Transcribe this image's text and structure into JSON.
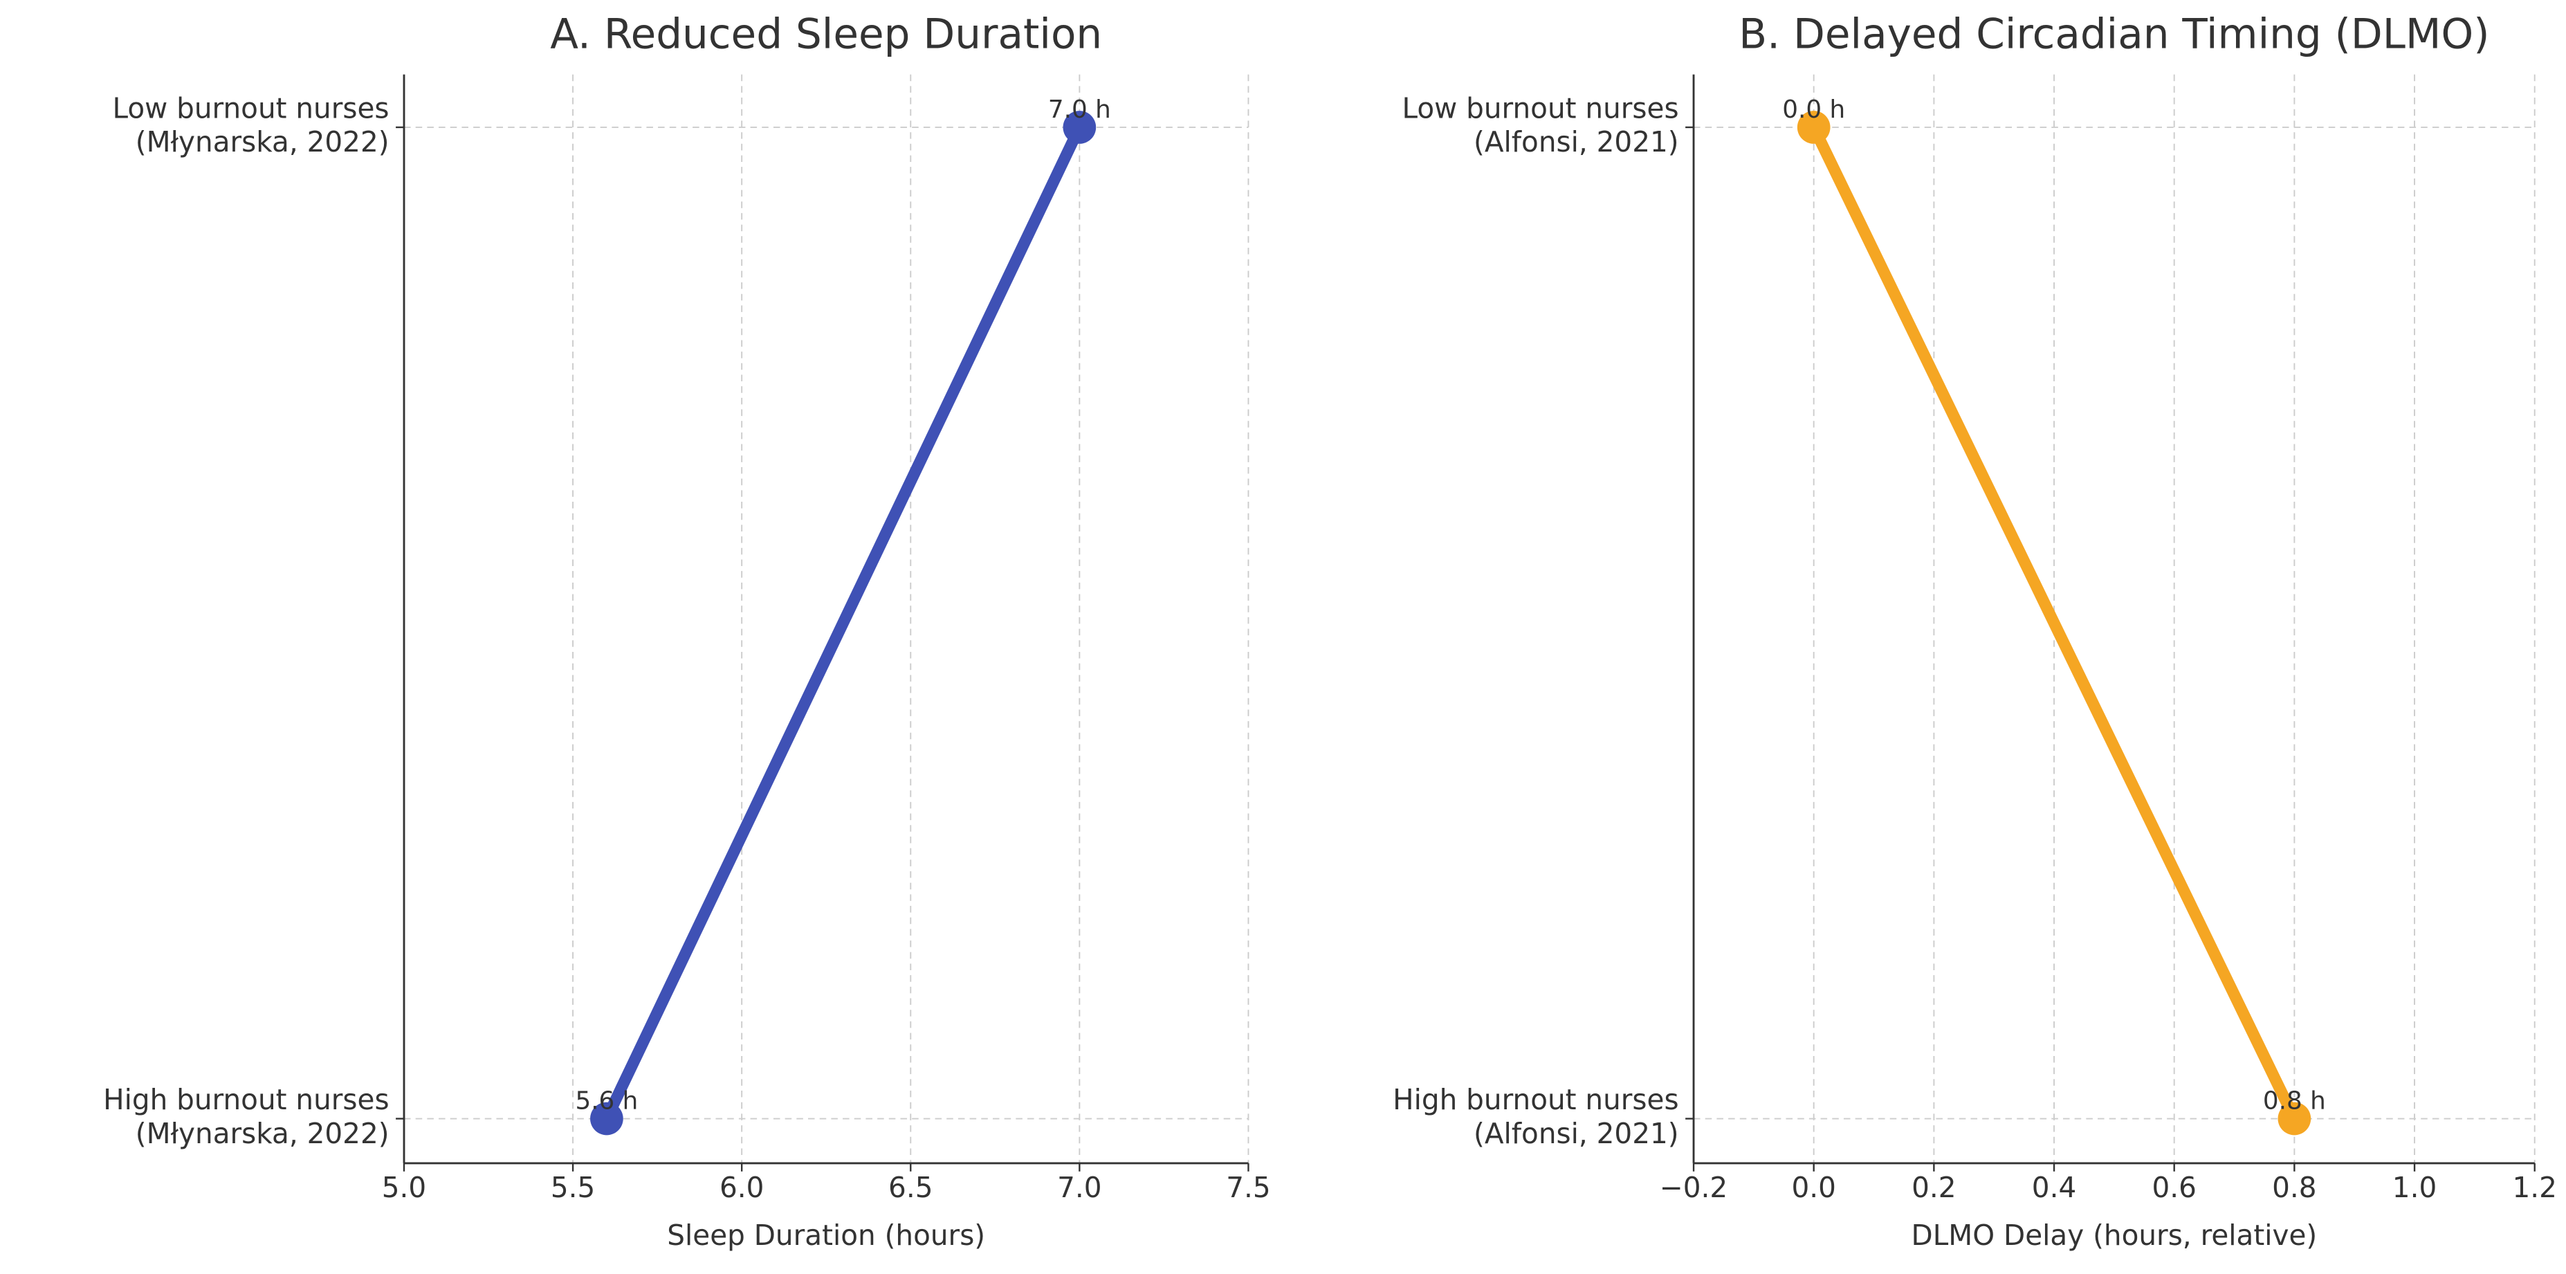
{
  "chart_data": [
    {
      "type": "line",
      "title": "A. Reduced Sleep Duration",
      "xlabel": "Sleep Duration (hours)",
      "categories": [
        "High burnout nurses\n(Młynarska, 2022)",
        "Low burnout nurses\n(Młynarska, 2022)"
      ],
      "series": [
        {
          "name": "Sleep Duration",
          "color": "#3f51b5",
          "values": [
            5.6,
            7.0
          ],
          "value_labels": [
            "5.6 h",
            "7.0 h"
          ]
        }
      ],
      "xlim": [
        5.0,
        7.5
      ],
      "xticks": [
        {
          "value": 5.0,
          "label": "5.0"
        },
        5.5,
        {
          "value": 6.0,
          "label": "6.0"
        },
        6.5,
        {
          "value": 7.0,
          "label": "7.0"
        },
        7.5
      ],
      "grid": true
    },
    {
      "type": "line",
      "title": "B. Delayed Circadian Timing (DLMO)",
      "xlabel": "DLMO Delay (hours, relative)",
      "categories": [
        "High burnout nurses\n(Alfonsi, 2021)",
        "Low burnout nurses\n(Alfonsi, 2021)"
      ],
      "series": [
        {
          "name": "DLMO Delay",
          "color": "#f5a623",
          "values": [
            0.8,
            0.0
          ],
          "value_labels": [
            "0.8 h",
            "0.0 h"
          ]
        }
      ],
      "xlim": [
        -0.2,
        1.2
      ],
      "xticks": [
        {
          "value": -0.2,
          "label": "−0.2"
        },
        {
          "value": 0.0,
          "label": "0.0"
        },
        0.2,
        0.4,
        0.6,
        0.8,
        {
          "value": 1.0,
          "label": "1.0"
        },
        1.2
      ],
      "grid": true
    }
  ]
}
